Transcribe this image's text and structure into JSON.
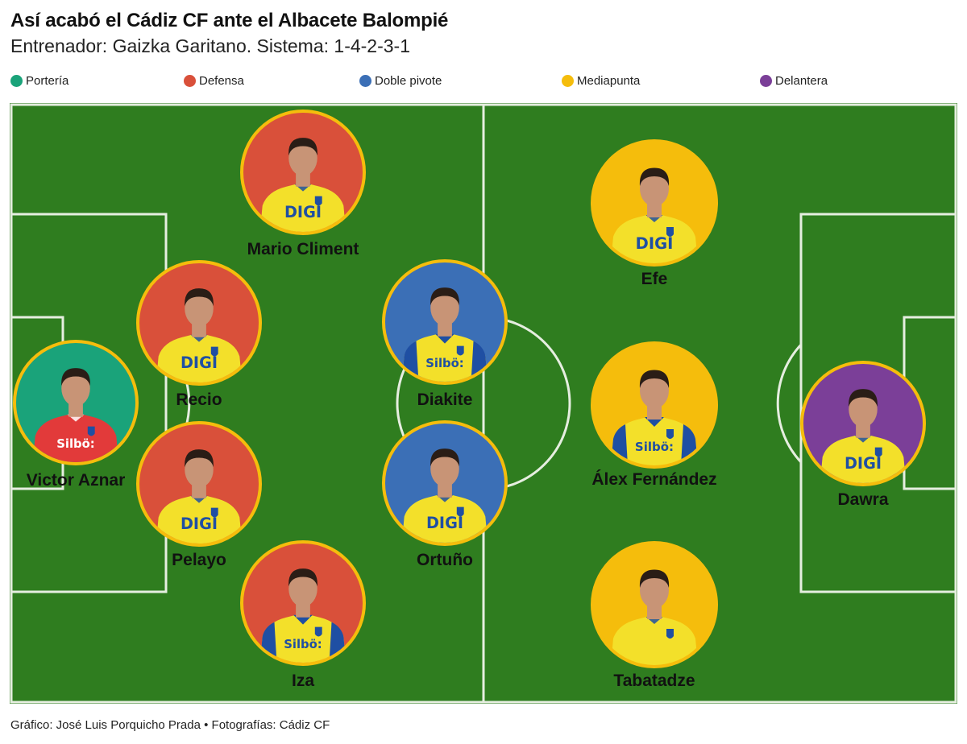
{
  "title": "Así acabó el Cádiz CF ante el Albacete Balompié",
  "subtitle": "Entrenador: Gaizka Garitano. Sistema: 1-4-2-3-1",
  "legend": [
    {
      "label": "Portería",
      "color": "#1aa37a"
    },
    {
      "label": "Defensa",
      "color": "#d9503a"
    },
    {
      "label": "Doble pivote",
      "color": "#3b6fb6"
    },
    {
      "label": "Mediapunta",
      "color": "#f5bd0c"
    },
    {
      "label": "Delantera",
      "color": "#7b3f98"
    }
  ],
  "players": [
    {
      "name": "Victor Aznar",
      "role": "Portería",
      "kit": "red",
      "sponsor": "Silbö:"
    },
    {
      "name": "Mario Climent",
      "role": "Defensa",
      "kit": "yellow",
      "sponsor": "DIGI"
    },
    {
      "name": "Recio",
      "role": "Defensa",
      "kit": "yellow",
      "sponsor": "DIGI"
    },
    {
      "name": "Pelayo",
      "role": "Defensa",
      "kit": "yellow",
      "sponsor": "DIGI"
    },
    {
      "name": "Iza",
      "role": "Defensa",
      "kit": "yellow-blue",
      "sponsor": "Silbö:"
    },
    {
      "name": "Diakite",
      "role": "Doble pivote",
      "kit": "yellow-blue",
      "sponsor": "Silbö:"
    },
    {
      "name": "Ortuño",
      "role": "Doble pivote",
      "kit": "yellow",
      "sponsor": "DIGI"
    },
    {
      "name": "Efe",
      "role": "Mediapunta",
      "kit": "yellow",
      "sponsor": "DIGI"
    },
    {
      "name": "Álex Fernández",
      "role": "Mediapunta",
      "kit": "yellow-blue",
      "sponsor": "Silbö:"
    },
    {
      "name": "Tabatadze",
      "role": "Mediapunta",
      "kit": "yellow",
      "sponsor": ""
    },
    {
      "name": "Dawra",
      "role": "Delantera",
      "kit": "yellow",
      "sponsor": "DIGI"
    }
  ],
  "footer": "Gráfico: José Luis Porquicho Prada • Fotografías: Cádiz CF",
  "colors": {
    "pitch": "#2f7d1f",
    "lines": "#e6eee0",
    "ring": "#f5bd0c",
    "kit_yellow": "#f3e02a",
    "kit_blue": "#1f4fa3",
    "kit_red": "#e23a3a",
    "skin": "#c89476",
    "hair": "#2a1d16"
  }
}
